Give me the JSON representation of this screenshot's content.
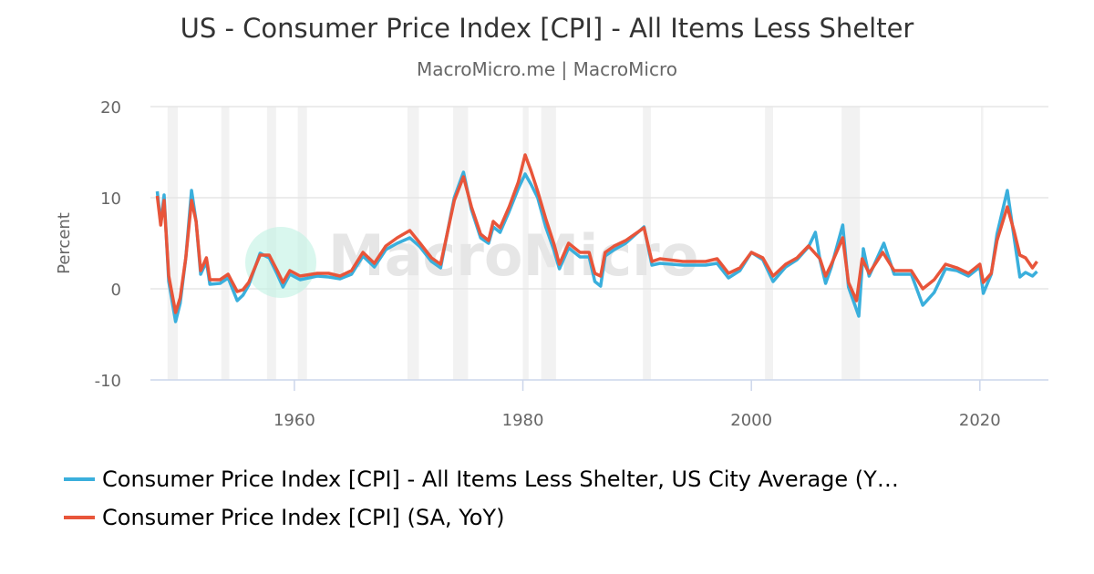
{
  "chart_data": {
    "type": "line",
    "title": "US - Consumer Price Index [CPI] - All Items Less Shelter",
    "subtitle": "MacroMicro.me | MacroMicro",
    "watermark": "MacroMicro",
    "ylabel": "Percent",
    "xlabel": "",
    "ylim": [
      -10,
      20
    ],
    "xlim": [
      1947.4,
      2026
    ],
    "yticks": [
      "20",
      "10",
      "0",
      "-10"
    ],
    "xticks": [
      "1960",
      "1980",
      "2000",
      "2020"
    ],
    "grid": true,
    "legend_position": "bottom",
    "recession_bands": [
      [
        1948.9,
        1949.8
      ],
      [
        1953.6,
        1954.3
      ],
      [
        1957.6,
        1958.4
      ],
      [
        1960.3,
        1961.1
      ],
      [
        1969.9,
        1970.9
      ],
      [
        1973.9,
        1975.2
      ],
      [
        1980.0,
        1980.5
      ],
      [
        1981.6,
        1982.9
      ],
      [
        1990.5,
        1991.2
      ],
      [
        2001.2,
        2001.9
      ],
      [
        2007.9,
        2009.5
      ],
      [
        2020.1,
        2020.3
      ]
    ],
    "series": [
      {
        "name": "Consumer Price Index [CPI] - All Items Less Shelter, US City Average (Y…",
        "color": "#3aafdc",
        "points": [
          [
            1948.0,
            10.7
          ],
          [
            1948.3,
            7.2
          ],
          [
            1948.6,
            10.3
          ],
          [
            1949.0,
            0.8
          ],
          [
            1949.6,
            -3.6
          ],
          [
            1950.0,
            -1.6
          ],
          [
            1950.5,
            3.4
          ],
          [
            1951.0,
            10.8
          ],
          [
            1951.4,
            7.4
          ],
          [
            1951.8,
            1.6
          ],
          [
            1952.3,
            3.0
          ],
          [
            1952.6,
            0.5
          ],
          [
            1953.5,
            0.6
          ],
          [
            1954.2,
            1.2
          ],
          [
            1955.0,
            -1.3
          ],
          [
            1955.5,
            -0.7
          ],
          [
            1956.0,
            0.4
          ],
          [
            1957.0,
            3.9
          ],
          [
            1957.8,
            3.4
          ],
          [
            1958.5,
            1.6
          ],
          [
            1959.0,
            0.2
          ],
          [
            1959.6,
            1.6
          ],
          [
            1960.5,
            1.0
          ],
          [
            1962,
            1.4
          ],
          [
            1963,
            1.3
          ],
          [
            1964,
            1.1
          ],
          [
            1965,
            1.6
          ],
          [
            1966,
            3.6
          ],
          [
            1967,
            2.4
          ],
          [
            1968,
            4.3
          ],
          [
            1969,
            5.0
          ],
          [
            1970.1,
            5.6
          ],
          [
            1971,
            4.6
          ],
          [
            1972,
            3.0
          ],
          [
            1972.8,
            2.3
          ],
          [
            1973.3,
            5.6
          ],
          [
            1974,
            10.0
          ],
          [
            1974.8,
            12.8
          ],
          [
            1975.5,
            8.7
          ],
          [
            1976.3,
            5.6
          ],
          [
            1977,
            5.0
          ],
          [
            1977.4,
            6.8
          ],
          [
            1978,
            6.2
          ],
          [
            1978.8,
            8.5
          ],
          [
            1979.6,
            11.0
          ],
          [
            1980.2,
            12.6
          ],
          [
            1980.7,
            11.5
          ],
          [
            1981.3,
            10.0
          ],
          [
            1982.0,
            6.8
          ],
          [
            1982.7,
            4.3
          ],
          [
            1983.2,
            2.2
          ],
          [
            1984,
            4.5
          ],
          [
            1985,
            3.5
          ],
          [
            1985.8,
            3.5
          ],
          [
            1986.3,
            0.8
          ],
          [
            1986.8,
            0.3
          ],
          [
            1987.2,
            3.6
          ],
          [
            1988,
            4.3
          ],
          [
            1989,
            5.0
          ],
          [
            1990.6,
            6.8
          ],
          [
            1991.3,
            2.6
          ],
          [
            1992,
            2.8
          ],
          [
            1994,
            2.6
          ],
          [
            1996,
            2.6
          ],
          [
            1997,
            2.8
          ],
          [
            1998,
            1.2
          ],
          [
            1999,
            2.0
          ],
          [
            2000,
            4.0
          ],
          [
            2001,
            3.2
          ],
          [
            2001.9,
            0.8
          ],
          [
            2003,
            2.4
          ],
          [
            2004,
            3.2
          ],
          [
            2005,
            4.6
          ],
          [
            2005.6,
            6.2
          ],
          [
            2006,
            3.2
          ],
          [
            2006.5,
            0.6
          ],
          [
            2007,
            2.4
          ],
          [
            2008,
            7.0
          ],
          [
            2008.5,
            0.2
          ],
          [
            2009.4,
            -3.0
          ],
          [
            2009.8,
            4.4
          ],
          [
            2010.3,
            1.4
          ],
          [
            2011.6,
            5.0
          ],
          [
            2012.5,
            1.6
          ],
          [
            2014,
            1.6
          ],
          [
            2015,
            -1.8
          ],
          [
            2016,
            -0.4
          ],
          [
            2017,
            2.2
          ],
          [
            2018,
            2.0
          ],
          [
            2019,
            1.4
          ],
          [
            2020,
            2.4
          ],
          [
            2020.3,
            -0.5
          ],
          [
            2021,
            1.6
          ],
          [
            2021.5,
            6.0
          ],
          [
            2022.4,
            10.8
          ],
          [
            2023,
            5.6
          ],
          [
            2023.5,
            1.3
          ],
          [
            2024,
            1.8
          ],
          [
            2024.6,
            1.4
          ],
          [
            2025,
            1.9
          ]
        ]
      },
      {
        "name": "Consumer Price Index [CPI] (SA, YoY)",
        "color": "#e8553a",
        "points": [
          [
            1948.0,
            10.2
          ],
          [
            1948.3,
            7.0
          ],
          [
            1948.6,
            9.7
          ],
          [
            1949.0,
            1.4
          ],
          [
            1949.6,
            -2.6
          ],
          [
            1950.0,
            -1.0
          ],
          [
            1950.5,
            3.4
          ],
          [
            1951.0,
            9.7
          ],
          [
            1951.4,
            7.4
          ],
          [
            1951.8,
            2.0
          ],
          [
            1952.3,
            3.4
          ],
          [
            1952.6,
            1.0
          ],
          [
            1953.5,
            1.0
          ],
          [
            1954.2,
            1.6
          ],
          [
            1955.0,
            -0.3
          ],
          [
            1955.5,
            -0.1
          ],
          [
            1956.0,
            0.7
          ],
          [
            1957.0,
            3.7
          ],
          [
            1957.8,
            3.7
          ],
          [
            1958.5,
            2.0
          ],
          [
            1959.0,
            0.7
          ],
          [
            1959.6,
            2.0
          ],
          [
            1960.5,
            1.4
          ],
          [
            1962,
            1.7
          ],
          [
            1963,
            1.7
          ],
          [
            1964,
            1.4
          ],
          [
            1965,
            2.0
          ],
          [
            1966,
            4.0
          ],
          [
            1967,
            2.8
          ],
          [
            1968,
            4.7
          ],
          [
            1969,
            5.6
          ],
          [
            1970.1,
            6.4
          ],
          [
            1971,
            5.0
          ],
          [
            1972,
            3.4
          ],
          [
            1972.8,
            2.7
          ],
          [
            1973.3,
            5.6
          ],
          [
            1974,
            9.7
          ],
          [
            1974.8,
            12.3
          ],
          [
            1975.5,
            9.0
          ],
          [
            1976.3,
            6.0
          ],
          [
            1977,
            5.3
          ],
          [
            1977.4,
            7.4
          ],
          [
            1978,
            6.7
          ],
          [
            1978.8,
            9.0
          ],
          [
            1979.6,
            11.7
          ],
          [
            1980.2,
            14.7
          ],
          [
            1980.7,
            13.0
          ],
          [
            1981.3,
            10.7
          ],
          [
            1982.0,
            7.7
          ],
          [
            1982.7,
            5.0
          ],
          [
            1983.2,
            2.7
          ],
          [
            1984,
            5.0
          ],
          [
            1985,
            4.0
          ],
          [
            1985.8,
            4.0
          ],
          [
            1986.3,
            1.7
          ],
          [
            1986.8,
            1.4
          ],
          [
            1987.2,
            4.0
          ],
          [
            1988,
            4.7
          ],
          [
            1989,
            5.3
          ],
          [
            1990.6,
            6.7
          ],
          [
            1991.3,
            3.0
          ],
          [
            1992,
            3.3
          ],
          [
            1994,
            3.0
          ],
          [
            1996,
            3.0
          ],
          [
            1997,
            3.3
          ],
          [
            1998,
            1.7
          ],
          [
            1999,
            2.3
          ],
          [
            2000,
            4.0
          ],
          [
            2001,
            3.4
          ],
          [
            2001.9,
            1.4
          ],
          [
            2003,
            2.7
          ],
          [
            2004,
            3.4
          ],
          [
            2005,
            4.7
          ],
          [
            2006,
            3.3
          ],
          [
            2006.5,
            1.4
          ],
          [
            2007,
            2.7
          ],
          [
            2008,
            5.6
          ],
          [
            2008.5,
            0.7
          ],
          [
            2009.2,
            -1.3
          ],
          [
            2009.7,
            3.3
          ],
          [
            2010.3,
            1.7
          ],
          [
            2011.5,
            4.0
          ],
          [
            2012.5,
            2.0
          ],
          [
            2014,
            2.0
          ],
          [
            2015,
            0.0
          ],
          [
            2016,
            1.0
          ],
          [
            2017,
            2.7
          ],
          [
            2018,
            2.3
          ],
          [
            2019,
            1.7
          ],
          [
            2020,
            2.7
          ],
          [
            2020.3,
            0.7
          ],
          [
            2021,
            1.7
          ],
          [
            2021.5,
            5.3
          ],
          [
            2022.4,
            9.0
          ],
          [
            2023,
            6.3
          ],
          [
            2023.5,
            3.7
          ],
          [
            2024,
            3.4
          ],
          [
            2024.6,
            2.3
          ],
          [
            2025,
            3.0
          ]
        ]
      }
    ]
  }
}
